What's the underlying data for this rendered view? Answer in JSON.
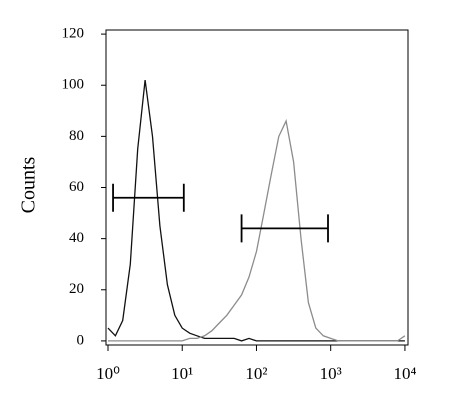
{
  "chart_data": {
    "type": "line",
    "y_label": "Counts",
    "x": [
      1,
      1.26,
      1.58,
      2,
      2.51,
      3.16,
      3.98,
      5.01,
      6.31,
      7.94,
      10,
      12.6,
      15.8,
      20,
      25.1,
      31.6,
      39.8,
      50.1,
      63.1,
      79.4,
      100,
      126,
      158,
      200,
      251,
      316,
      398,
      501,
      631,
      794,
      1000,
      1260,
      1580,
      2000,
      2510,
      3160,
      3980,
      5010,
      6310,
      7940,
      10000
    ],
    "series": [
      {
        "color": "#111111",
        "values": [
          5,
          2,
          8,
          30,
          75,
          102,
          80,
          45,
          22,
          10,
          5,
          3,
          2,
          1,
          1,
          1,
          1,
          1,
          0,
          1,
          0,
          0,
          0,
          0,
          0,
          0,
          0,
          0,
          0,
          0,
          0,
          0,
          0,
          0,
          0,
          0,
          0,
          0,
          0,
          0,
          0
        ]
      },
      {
        "color": "#8c8c8c",
        "values": [
          0,
          0,
          0,
          0,
          0,
          0,
          0,
          0,
          0,
          0,
          0,
          1,
          1,
          2,
          4,
          7,
          10,
          14,
          18,
          25,
          35,
          50,
          65,
          80,
          86,
          70,
          40,
          15,
          5,
          2,
          1,
          0,
          0,
          0,
          0,
          0,
          0,
          0,
          0,
          0,
          2
        ]
      }
    ],
    "gates": [
      {
        "x": [
          1.17,
          10.5
        ],
        "y": 56
      },
      {
        "x": [
          63,
          920
        ],
        "y": 44
      }
    ],
    "xscale": "log",
    "xlim": [
      0.94,
      11000
    ],
    "ylim": [
      -1.6,
      121.6
    ],
    "xticks": [
      {
        "value": 1,
        "label": "10⁰"
      },
      {
        "value": 10,
        "label": "10¹"
      },
      {
        "value": 100,
        "label": "10²"
      },
      {
        "value": 1000,
        "label": "10³"
      },
      {
        "value": 10000,
        "label": "10⁴"
      }
    ],
    "yticks": [
      0,
      20,
      40,
      60,
      80,
      100,
      120
    ]
  }
}
